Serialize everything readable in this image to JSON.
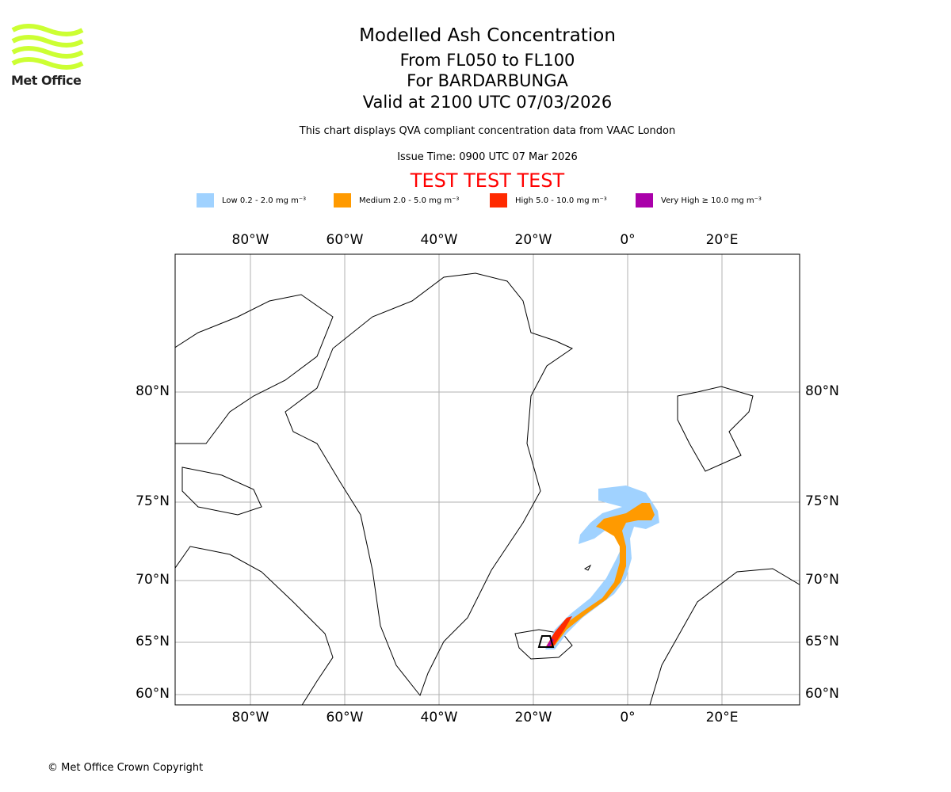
{
  "logo": {
    "text": "Met Office",
    "color": "#ccff33"
  },
  "titles": {
    "main": "Modelled Ash Concentration",
    "levels": "From FL050 to FL100",
    "volcano": "For BARDARBUNGA",
    "valid": "Valid at 2100 UTC 07/03/2026",
    "note": "This chart displays QVA compliant concentration data from VAAC London",
    "issue": "Issue Time: 0900 UTC 07 Mar 2026",
    "test": "TEST TEST TEST"
  },
  "legend": [
    {
      "label": "Low 0.2 - 2.0 mg m⁻³",
      "color": "#a0d2ff"
    },
    {
      "label": "Medium 2.0 - 5.0 mg m⁻³",
      "color": "#ff9a00"
    },
    {
      "label": "High 5.0 - 10.0 mg m⁻³",
      "color": "#ff2a00"
    },
    {
      "label": "Very High ≥ 10.0 mg m⁻³",
      "color": "#aa00aa"
    }
  ],
  "map": {
    "lon_ticks": [
      "80°W",
      "60°W",
      "40°W",
      "20°W",
      "0°",
      "20°E"
    ],
    "lat_ticks": [
      "80°N",
      "75°N",
      "70°N",
      "65°N",
      "60°N"
    ]
  },
  "footer": {
    "copyright": "© Met Office Crown Copyright"
  }
}
